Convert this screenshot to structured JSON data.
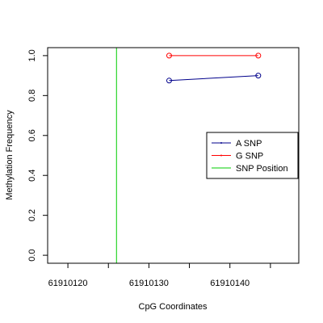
{
  "chart_data": {
    "type": "line",
    "title": "",
    "xlabel": "CpG Coordinates",
    "ylabel": "Methylation Frequency",
    "xlim": [
      61910117.5,
      61910148.5
    ],
    "ylim": [
      -0.04,
      1.04
    ],
    "x_ticks": [
      61910120,
      61910125,
      61910130,
      61910135,
      61910140,
      61910145
    ],
    "x_tick_labels": [
      "61910120",
      "",
      "61910130",
      "",
      "61910140",
      ""
    ],
    "y_ticks": [
      0.0,
      0.2,
      0.4,
      0.6,
      0.8,
      1.0
    ],
    "y_tick_labels": [
      "0.0",
      "0.2",
      "0.4",
      "0.6",
      "0.8",
      "1.0"
    ],
    "grid": false,
    "legend_position": "right",
    "series": [
      {
        "name": "A SNP",
        "color": "#00008B",
        "marker": "open-circle",
        "x": [
          61910132.5,
          61910143.5
        ],
        "y": [
          0.875,
          0.9
        ]
      },
      {
        "name": "G SNP",
        "color": "#FF0000",
        "marker": "open-circle",
        "x": [
          61910132.5,
          61910143.5
        ],
        "y": [
          1.0,
          1.0
        ]
      }
    ],
    "vlines": [
      {
        "name": "SNP Position",
        "color": "#00CC00",
        "x": 61910126
      }
    ]
  }
}
